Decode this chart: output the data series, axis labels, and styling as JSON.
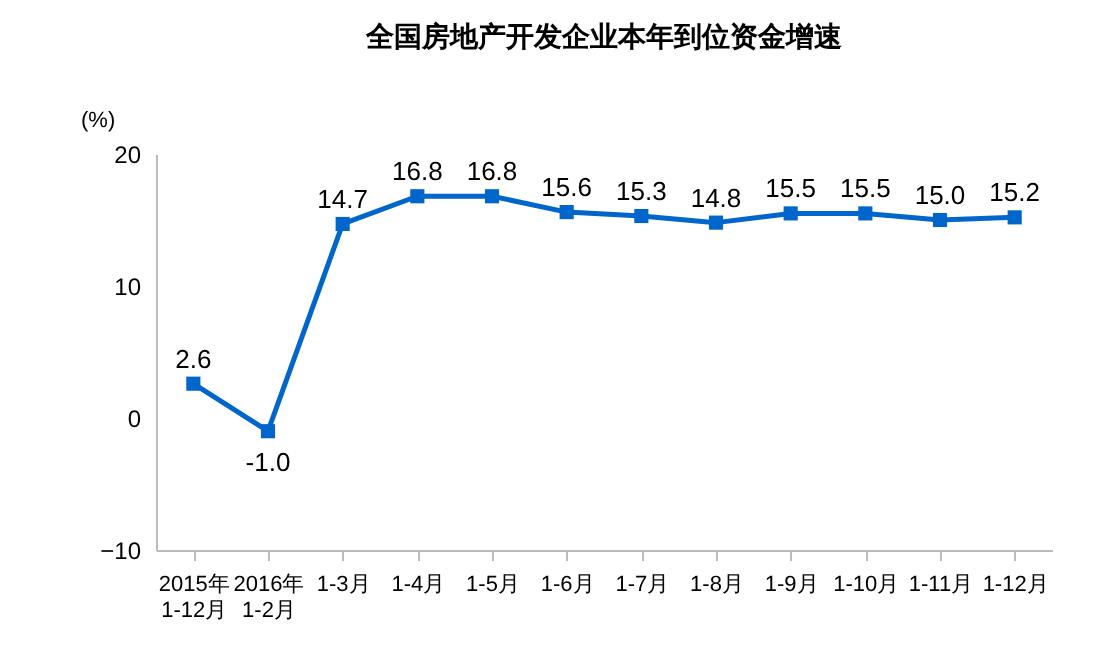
{
  "chart_data": {
    "type": "line",
    "title": "全国房地产开发企业本年到位资金增速",
    "ylabel": "(%)",
    "categories": [
      "2015年\n1-12月",
      "2016年\n1-2月",
      "1-3月",
      "1-4月",
      "1-5月",
      "1-6月",
      "1-7月",
      "1-8月",
      "1-9月",
      "1-10月",
      "1-11月",
      "1-12月"
    ],
    "series": [
      {
        "color": "#0066cc",
        "values": [
          2.6,
          -1.0,
          14.7,
          16.8,
          16.8,
          15.6,
          15.3,
          14.8,
          15.5,
          15.5,
          15.0,
          15.2
        ],
        "value_labels": [
          "2.6",
          "-1.0",
          "14.7",
          "16.8",
          "16.8",
          "15.6",
          "15.3",
          "14.8",
          "15.5",
          "15.5",
          "15.0",
          "15.2"
        ]
      }
    ],
    "ylim": [
      -10,
      20
    ],
    "yticks": [
      -10,
      0,
      10,
      20
    ],
    "marker": "square",
    "line_style": "solid",
    "grid": false
  }
}
